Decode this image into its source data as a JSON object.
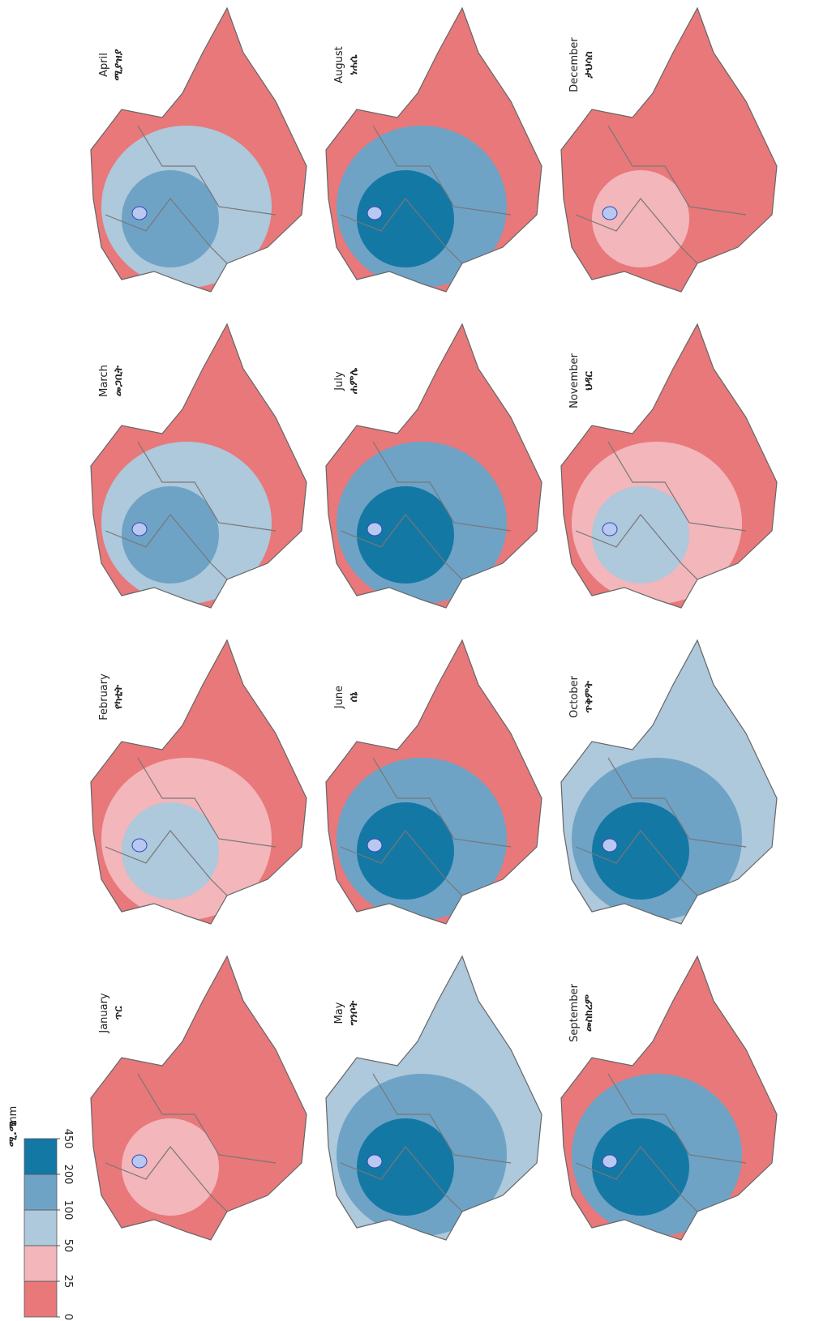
{
  "maps": [
    {
      "name": "January",
      "name_am": "ጥር",
      "colors": [
        "#e8787a",
        "#e8787a",
        "#f2b6bb"
      ]
    },
    {
      "name": "February",
      "name_am": "የካቲት",
      "colors": [
        "#e8787a",
        "#f2b6bb",
        "#aec8dc"
      ]
    },
    {
      "name": "March",
      "name_am": "መጋቢት",
      "colors": [
        "#e8787a",
        "#aec8dc",
        "#6ea3c6"
      ]
    },
    {
      "name": "April",
      "name_am": "ሚያዝያ",
      "colors": [
        "#e8787a",
        "#aec8dc",
        "#6ea3c6"
      ]
    },
    {
      "name": "May",
      "name_am": "ግንቦት",
      "colors": [
        "#aec8dc",
        "#6ea3c6",
        "#1478a5"
      ]
    },
    {
      "name": "June",
      "name_am": "ሰኔ",
      "colors": [
        "#e8787a",
        "#6ea3c6",
        "#1478a5"
      ]
    },
    {
      "name": "July",
      "name_am": "ሐምሌ",
      "colors": [
        "#e8787a",
        "#6ea3c6",
        "#1478a5"
      ]
    },
    {
      "name": "August",
      "name_am": "ነሐሴ",
      "colors": [
        "#e8787a",
        "#6ea3c6",
        "#1478a5"
      ]
    },
    {
      "name": "September",
      "name_am": "መስከረም",
      "colors": [
        "#e8787a",
        "#6ea3c6",
        "#1478a5"
      ]
    },
    {
      "name": "October",
      "name_am": "ጥቅምት",
      "colors": [
        "#aec8dc",
        "#6ea3c6",
        "#1478a5"
      ]
    },
    {
      "name": "November",
      "name_am": "ህዳር",
      "colors": [
        "#e8787a",
        "#f2b6bb",
        "#aec8dc"
      ]
    },
    {
      "name": "December",
      "name_am": "ታህሳስ",
      "colors": [
        "#e8787a",
        "#e8787a",
        "#f2b6bb"
      ]
    }
  ],
  "legend": {
    "unit_am": "ሚ.ሜ",
    "unit": "mm",
    "ticks": [
      0,
      25,
      50,
      100,
      200,
      450
    ],
    "colors": [
      "#e8787a",
      "#f2b6bb",
      "#aec8dc",
      "#6ea3c6",
      "#1478a5"
    ]
  }
}
